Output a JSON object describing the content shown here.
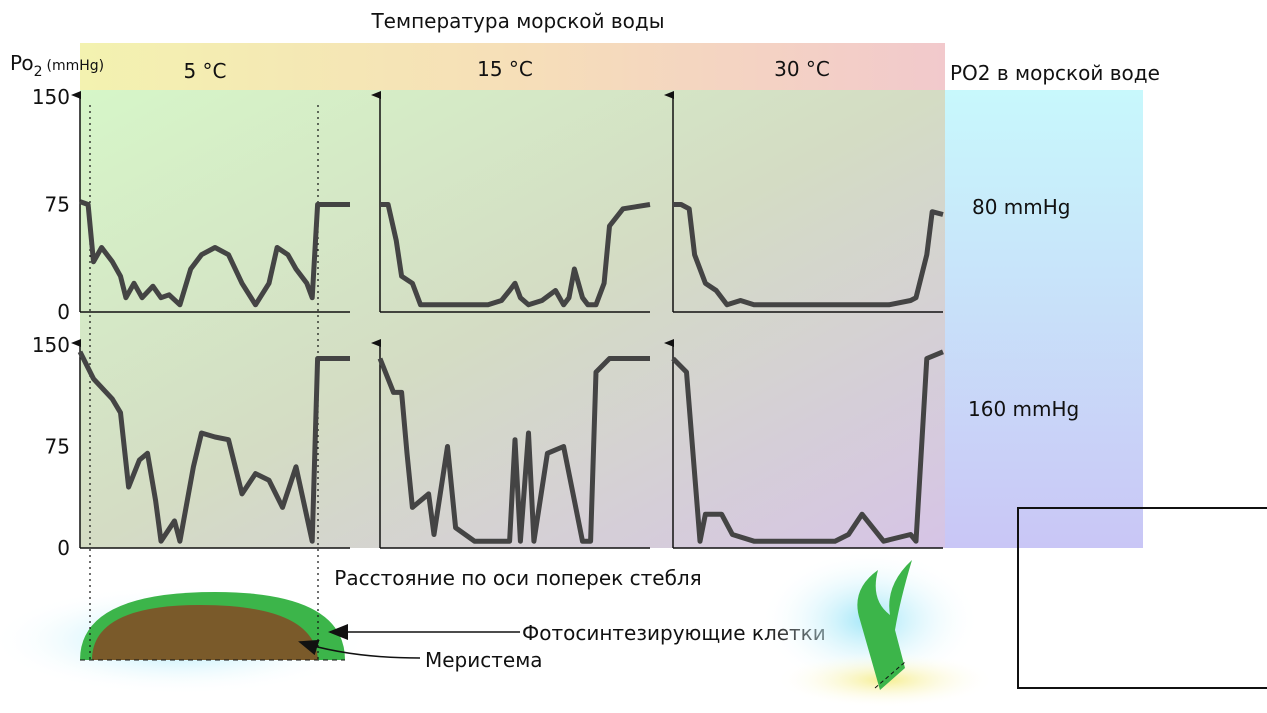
{
  "title": "Температура морской воды",
  "y_label": {
    "main": "Po",
    "sub": "2",
    "unit": "(mmHg)"
  },
  "columns": [
    "5 °C",
    "15 °C",
    "30 °C"
  ],
  "rows_header": "PO2 в морской воде",
  "rows": [
    "80 mmHg",
    "160 mmHg"
  ],
  "x_label": "Расстояние по оси поперек стебля",
  "labels": {
    "photosynthetic": "Фотосинтезирующие клетки",
    "meristem": "Меристема"
  },
  "chart_data": [
    {
      "type": "line",
      "color": "#444444",
      "xlim": [
        0,
        100
      ],
      "ylim": [
        0,
        150
      ],
      "yticks": [
        0,
        75,
        150
      ],
      "x": [
        0,
        3,
        5,
        8,
        12,
        15,
        17,
        20,
        23,
        27,
        30,
        33,
        37,
        41,
        45,
        50,
        55,
        60,
        65,
        70,
        73,
        77,
        80,
        84,
        86,
        88,
        92,
        100
      ],
      "values": [
        77,
        75,
        35,
        45,
        35,
        25,
        10,
        20,
        10,
        18,
        10,
        12,
        5,
        30,
        40,
        45,
        40,
        20,
        5,
        20,
        45,
        40,
        30,
        20,
        10,
        75,
        75,
        75
      ]
    },
    {
      "type": "line",
      "color": "#444444",
      "xlim": [
        0,
        100
      ],
      "ylim": [
        0,
        150
      ],
      "x": [
        0,
        3,
        6,
        8,
        12,
        15,
        20,
        30,
        40,
        45,
        48,
        50,
        52,
        55,
        60,
        65,
        68,
        70,
        72,
        75,
        77,
        80,
        83,
        85,
        90,
        100
      ],
      "values": [
        75,
        75,
        50,
        25,
        20,
        5,
        5,
        5,
        5,
        8,
        15,
        20,
        10,
        5,
        8,
        15,
        5,
        10,
        30,
        10,
        5,
        5,
        20,
        60,
        72,
        75
      ]
    },
    {
      "type": "line",
      "color": "#444444",
      "xlim": [
        0,
        100
      ],
      "ylim": [
        0,
        150
      ],
      "x": [
        0,
        3,
        6,
        8,
        12,
        16,
        20,
        25,
        30,
        40,
        50,
        60,
        70,
        80,
        88,
        90,
        92,
        94,
        96,
        100
      ],
      "values": [
        75,
        75,
        72,
        40,
        20,
        15,
        5,
        8,
        5,
        5,
        5,
        5,
        5,
        5,
        8,
        10,
        25,
        40,
        70,
        68
      ]
    },
    {
      "type": "line",
      "color": "#444444",
      "xlim": [
        0,
        100
      ],
      "ylim": [
        0,
        150
      ],
      "yticks": [
        0,
        75,
        150
      ],
      "x": [
        0,
        5,
        12,
        15,
        18,
        22,
        25,
        28,
        30,
        35,
        37,
        42,
        45,
        50,
        55,
        60,
        65,
        70,
        75,
        80,
        86,
        88,
        100
      ],
      "values": [
        145,
        125,
        110,
        100,
        45,
        65,
        70,
        35,
        5,
        20,
        5,
        60,
        85,
        82,
        80,
        40,
        55,
        50,
        30,
        60,
        5,
        140,
        140
      ]
    },
    {
      "type": "line",
      "color": "#444444",
      "xlim": [
        0,
        100
      ],
      "ylim": [
        0,
        150
      ],
      "x": [
        0,
        5,
        8,
        10,
        12,
        18,
        20,
        25,
        28,
        35,
        45,
        48,
        50,
        52,
        55,
        57,
        62,
        68,
        75,
        78,
        80,
        85,
        100
      ],
      "values": [
        140,
        115,
        115,
        70,
        30,
        40,
        10,
        75,
        15,
        5,
        5,
        5,
        80,
        5,
        85,
        5,
        70,
        75,
        5,
        5,
        130,
        140,
        140
      ]
    },
    {
      "type": "line",
      "color": "#444444",
      "xlim": [
        0,
        100
      ],
      "ylim": [
        0,
        150
      ],
      "x": [
        0,
        5,
        10,
        12,
        18,
        22,
        30,
        40,
        50,
        60,
        65,
        70,
        78,
        88,
        90,
        94,
        100
      ],
      "values": [
        140,
        130,
        5,
        25,
        25,
        10,
        5,
        5,
        5,
        5,
        10,
        25,
        5,
        10,
        5,
        140,
        145
      ]
    }
  ]
}
